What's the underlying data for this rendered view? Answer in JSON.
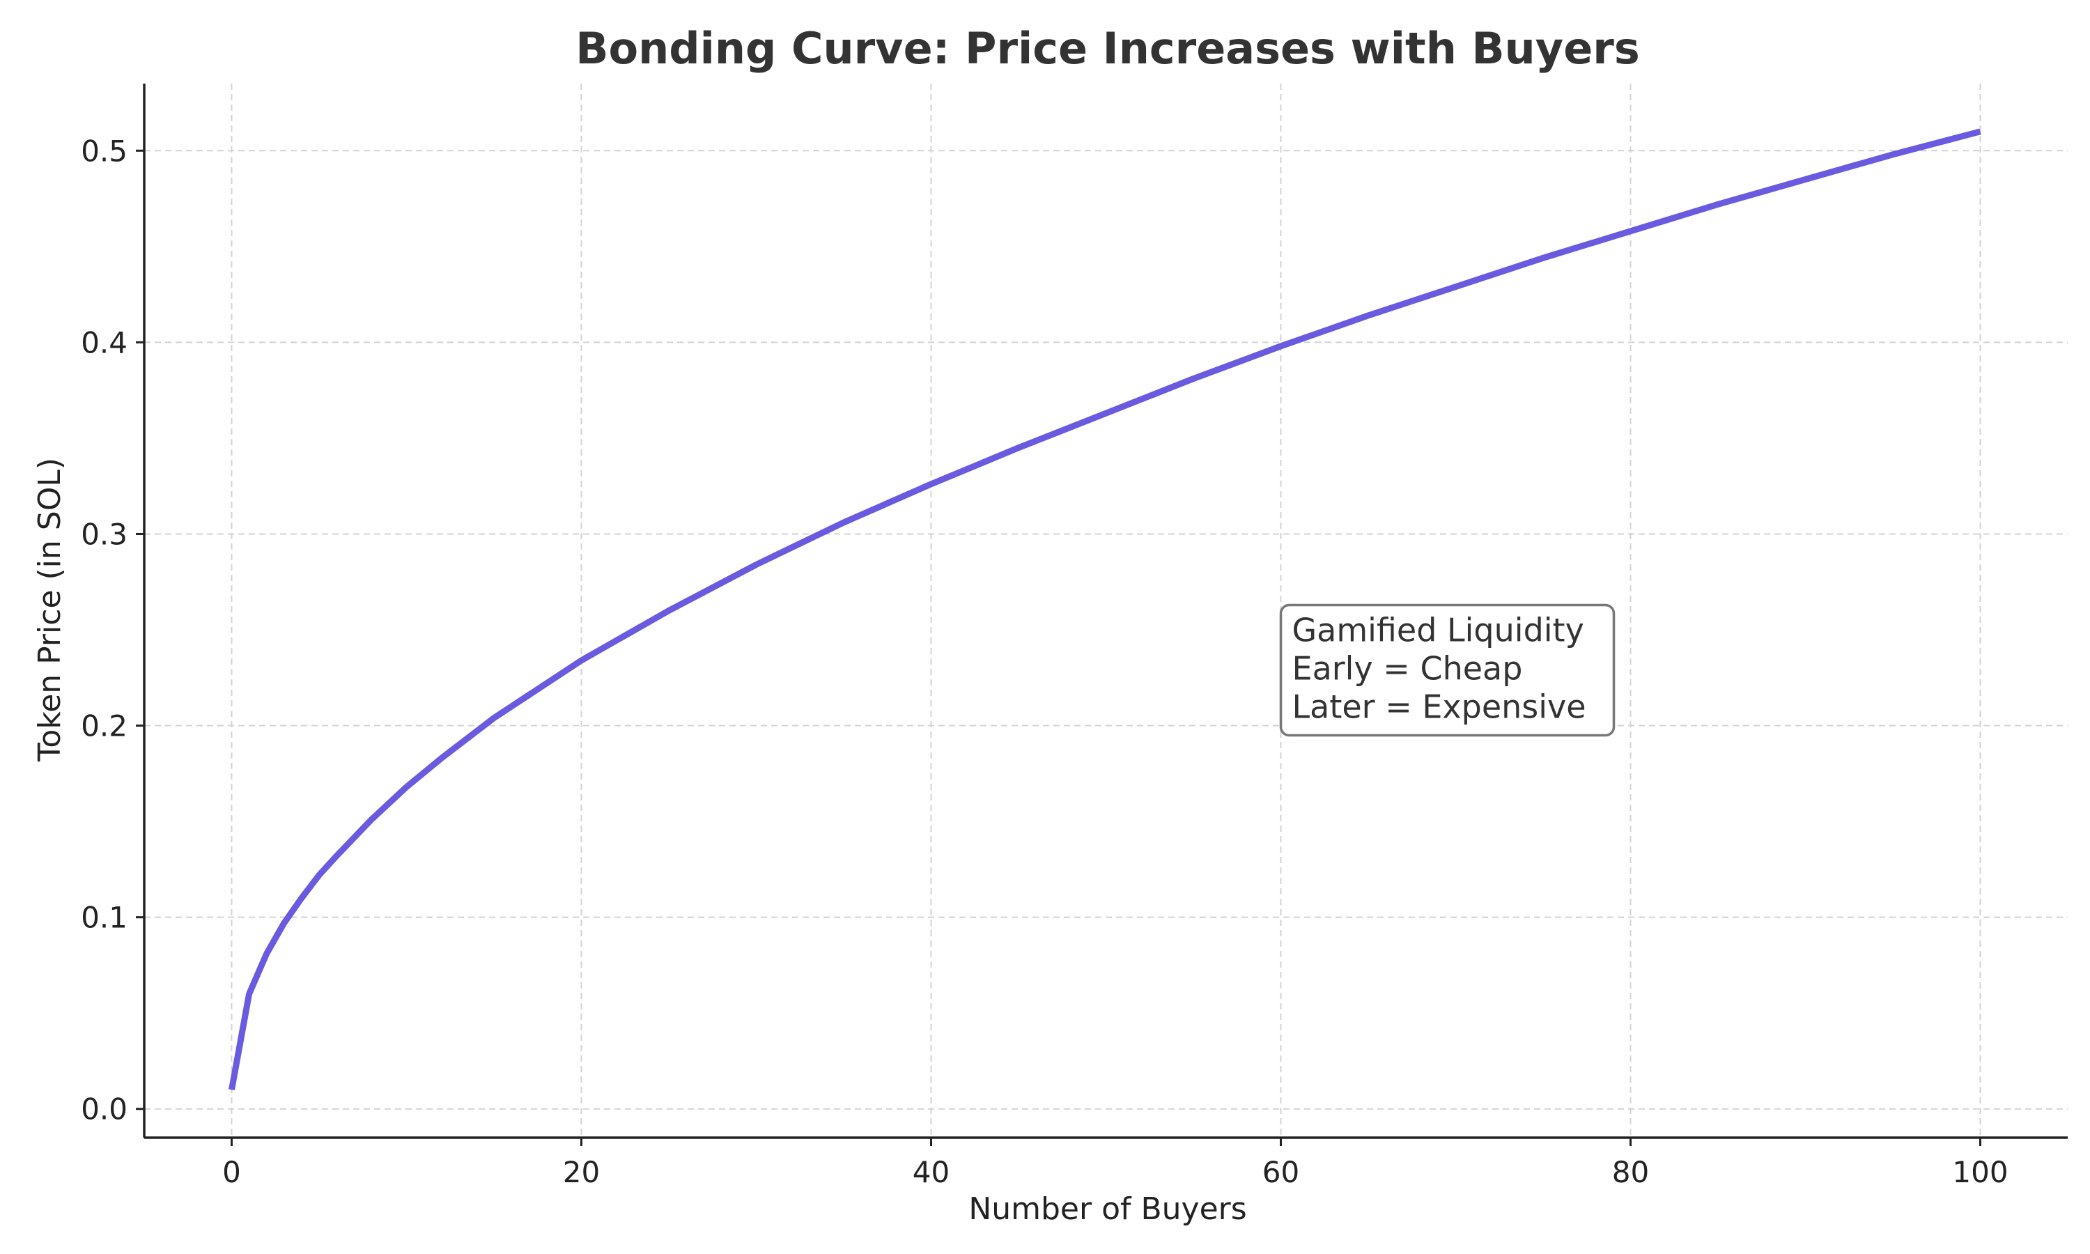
{
  "chart_data": {
    "type": "line",
    "title": "Bonding Curve: Price Increases with Buyers",
    "xlabel": "Number of Buyers",
    "ylabel": "Token Price (in SOL)",
    "xlim": [
      -5,
      105
    ],
    "ylim": [
      -0.015,
      0.535
    ],
    "xticks": [
      0,
      20,
      40,
      60,
      80,
      100
    ],
    "yticks": [
      0.0,
      0.1,
      0.2,
      0.3,
      0.4,
      0.5
    ],
    "xtick_labels": [
      "0",
      "20",
      "40",
      "60",
      "80",
      "100"
    ],
    "ytick_labels": [
      "0.0",
      "0.1",
      "0.2",
      "0.3",
      "0.4",
      "0.5"
    ],
    "grid": true,
    "series": [
      {
        "color": "#6a5ae0",
        "x": [
          0,
          1,
          2,
          3,
          4,
          5,
          6,
          8,
          10,
          12,
          15,
          20,
          25,
          30,
          35,
          40,
          45,
          50,
          55,
          60,
          65,
          70,
          75,
          80,
          85,
          90,
          95,
          100
        ],
        "y": [
          0.01,
          0.06,
          0.081,
          0.097,
          0.11,
          0.122,
          0.132,
          0.151,
          0.168,
          0.183,
          0.204,
          0.234,
          0.26,
          0.284,
          0.306,
          0.326,
          0.345,
          0.363,
          0.381,
          0.398,
          0.414,
          0.429,
          0.444,
          0.458,
          0.472,
          0.485,
          0.498,
          0.51
        ]
      }
    ],
    "annotation": {
      "lines": [
        "Gamified Liquidity",
        "Early = Cheap",
        "Later = Expensive"
      ],
      "x": 60,
      "y": 0.2
    }
  }
}
